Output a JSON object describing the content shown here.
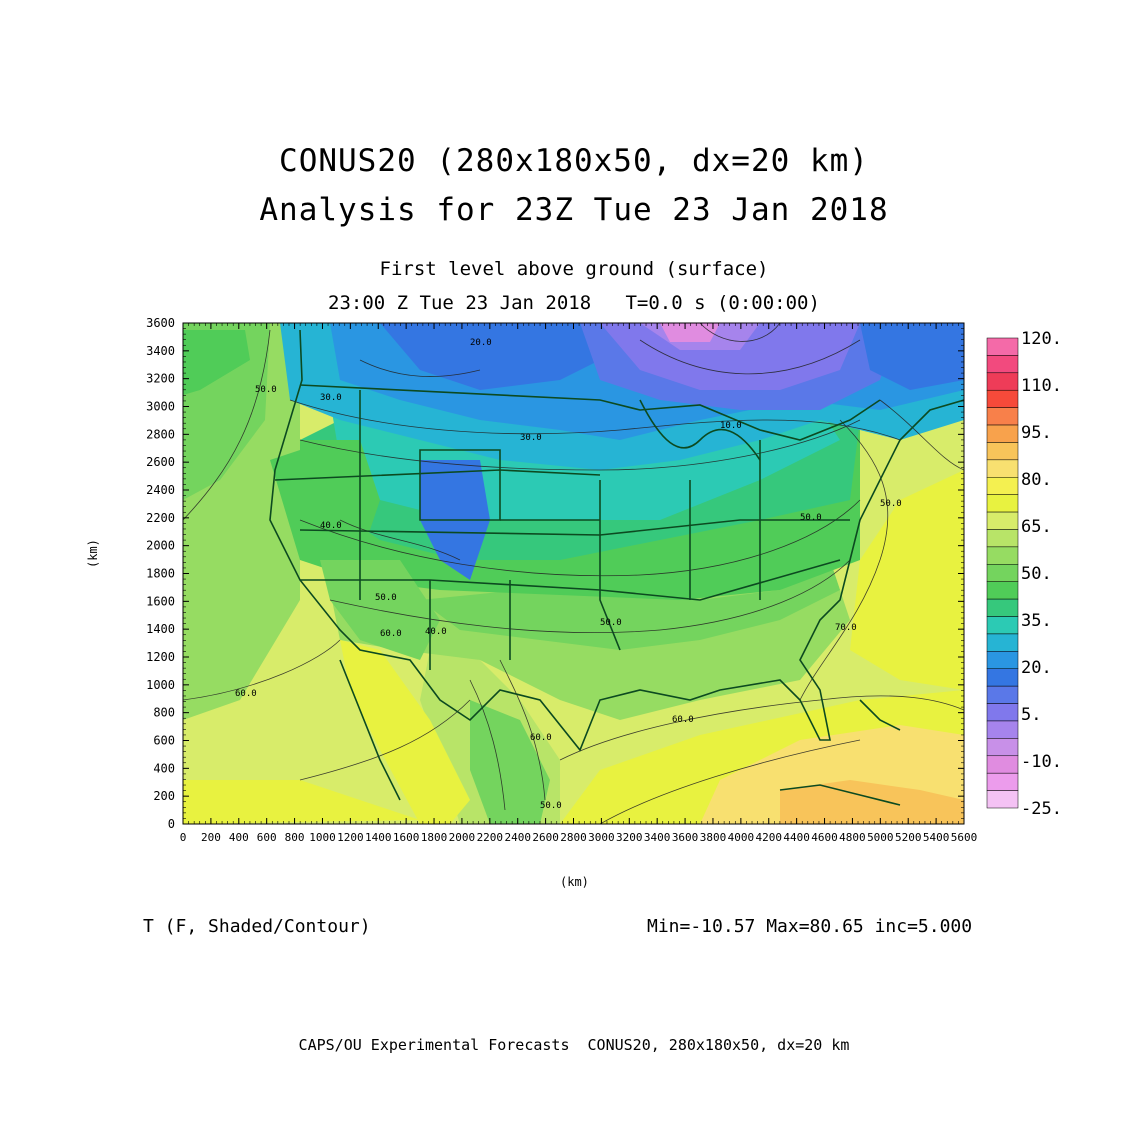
{
  "title": {
    "line1": "CONUS20 (280x180x50, dx=20 km)",
    "line2": "Analysis for 23Z Tue 23 Jan 2018"
  },
  "subtitle": {
    "level": "First level above ground (surface)",
    "time": "23:00 Z Tue 23 Jan 2018   T=0.0 s (0:00:00)"
  },
  "axes": {
    "x_label": "(km)",
    "y_label": "(km)",
    "x_ticks": [
      "0",
      "200",
      "400",
      "600",
      "800",
      "1000",
      "1200",
      "1400",
      "1600",
      "1800",
      "2000",
      "2200",
      "2400",
      "2600",
      "2800",
      "3000",
      "3200",
      "3400",
      "3600",
      "3800",
      "4000",
      "4200",
      "4400",
      "4600",
      "4800",
      "5000",
      "5200",
      "5400",
      "5600"
    ],
    "y_ticks": [
      "0",
      "200",
      "400",
      "600",
      "800",
      "1000",
      "1200",
      "1400",
      "1600",
      "1800",
      "2000",
      "2200",
      "2400",
      "2600",
      "2800",
      "3000",
      "3200",
      "3400",
      "3600"
    ],
    "x_range": [
      0,
      5600
    ],
    "y_range": [
      0,
      3600
    ]
  },
  "colorbar": {
    "labels": [
      "120.",
      "110.",
      "95.",
      "80.",
      "65.",
      "50.",
      "35.",
      "20.",
      "5.",
      "-10.",
      "-25."
    ],
    "colors_top_to_bottom": [
      "#f46aa8",
      "#f24a7e",
      "#ee3c58",
      "#f64a3a",
      "#f8804a",
      "#f8a24c",
      "#f8c45a",
      "#f8e070",
      "#f4f050",
      "#e8f240",
      "#d8ec6a",
      "#b8e468",
      "#96dc62",
      "#74d45e",
      "#50cc58",
      "#36c87c",
      "#2ccab4",
      "#26b4d4",
      "#2a96e2",
      "#3476e2",
      "#5a78e8",
      "#8078ec",
      "#a684ec",
      "#c890e8",
      "#e08ce0",
      "#ec9cec",
      "#f4c2f4"
    ]
  },
  "contour_labels": [
    "20.0",
    "30.0",
    "30.0",
    "40.0",
    "50.0",
    "50.0",
    "50.0",
    "60.0",
    "60.0",
    "60.0",
    "70.0",
    "10.0",
    "40.0",
    "60.0",
    "50.0",
    "50.0",
    "50.0"
  ],
  "field": {
    "variable": "T (F, Shaded/Contour)",
    "stats": "Min=-10.57 Max=80.65 inc=5.000"
  },
  "footer": "CAPS/OU Experimental Forecasts  CONUS20, 280x180x50, dx=20 km"
}
